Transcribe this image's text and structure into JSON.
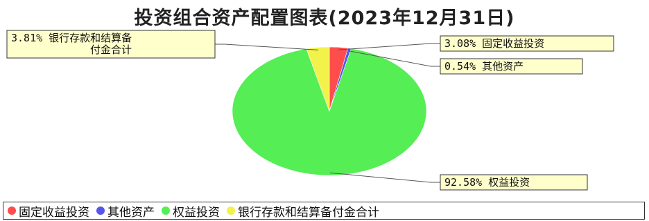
{
  "chart_data": {
    "type": "pie",
    "title": "投资组合资产配置图表(2023年12月31日)",
    "categories": [
      "固定收益投资",
      "其他资产",
      "权益投资",
      "银行存款和结算备付金合计"
    ],
    "values": [
      3.08,
      0.54,
      92.58,
      3.81
    ],
    "unit": "%",
    "colors": [
      "#ff4d4d",
      "#5555ee",
      "#55ee55",
      "#f2f24a"
    ],
    "labels": [
      [
        "3.08% 固定收益投资"
      ],
      [
        "0.54% 其他资产"
      ],
      [
        "92.58% 权益投资"
      ],
      [
        "3.81% 银行存款和结算备",
        "付金合计"
      ]
    ],
    "legend_position": "bottom"
  }
}
